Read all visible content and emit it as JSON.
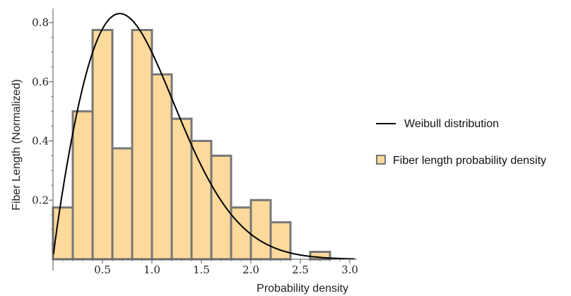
{
  "chart_data": {
    "type": "bar",
    "xlabel": "Probability density",
    "ylabel": "Fiber Length (Normalized)",
    "xlim": [
      0,
      3.05
    ],
    "ylim": [
      0,
      0.85
    ],
    "x_ticks": [
      0.5,
      1.0,
      1.5,
      2.0,
      2.5,
      3.0
    ],
    "x_tick_labels": [
      "0.5",
      "1.0",
      "1.5",
      "2.0",
      "2.5",
      "3.0"
    ],
    "y_ticks": [
      0.2,
      0.4,
      0.6,
      0.8
    ],
    "y_tick_labels": [
      "0.2",
      "0.4",
      "0.6",
      "0.8"
    ],
    "bin_width": 0.2,
    "bins": [
      {
        "x0": 0.0,
        "x1": 0.2,
        "value": 0.175
      },
      {
        "x0": 0.2,
        "x1": 0.4,
        "value": 0.5
      },
      {
        "x0": 0.4,
        "x1": 0.6,
        "value": 0.775
      },
      {
        "x0": 0.6,
        "x1": 0.8,
        "value": 0.375
      },
      {
        "x0": 0.8,
        "x1": 1.0,
        "value": 0.775
      },
      {
        "x0": 1.0,
        "x1": 1.2,
        "value": 0.625
      },
      {
        "x0": 1.2,
        "x1": 1.4,
        "value": 0.475
      },
      {
        "x0": 1.4,
        "x1": 1.6,
        "value": 0.4
      },
      {
        "x0": 1.6,
        "x1": 1.8,
        "value": 0.35
      },
      {
        "x0": 1.8,
        "x1": 2.0,
        "value": 0.175
      },
      {
        "x0": 2.0,
        "x1": 2.2,
        "value": 0.2
      },
      {
        "x0": 2.2,
        "x1": 2.4,
        "value": 0.125
      },
      {
        "x0": 2.6,
        "x1": 2.8,
        "value": 0.025
      }
    ],
    "series": [
      {
        "name": "Weibull distribution",
        "type": "line",
        "shape": 1.9,
        "scale": 1.0,
        "color": "#000000"
      },
      {
        "name": "Fiber length probability density",
        "type": "bar",
        "fill": "#fdd99b",
        "stroke": "#777777"
      }
    ],
    "legend_position": "right",
    "grid": false
  }
}
